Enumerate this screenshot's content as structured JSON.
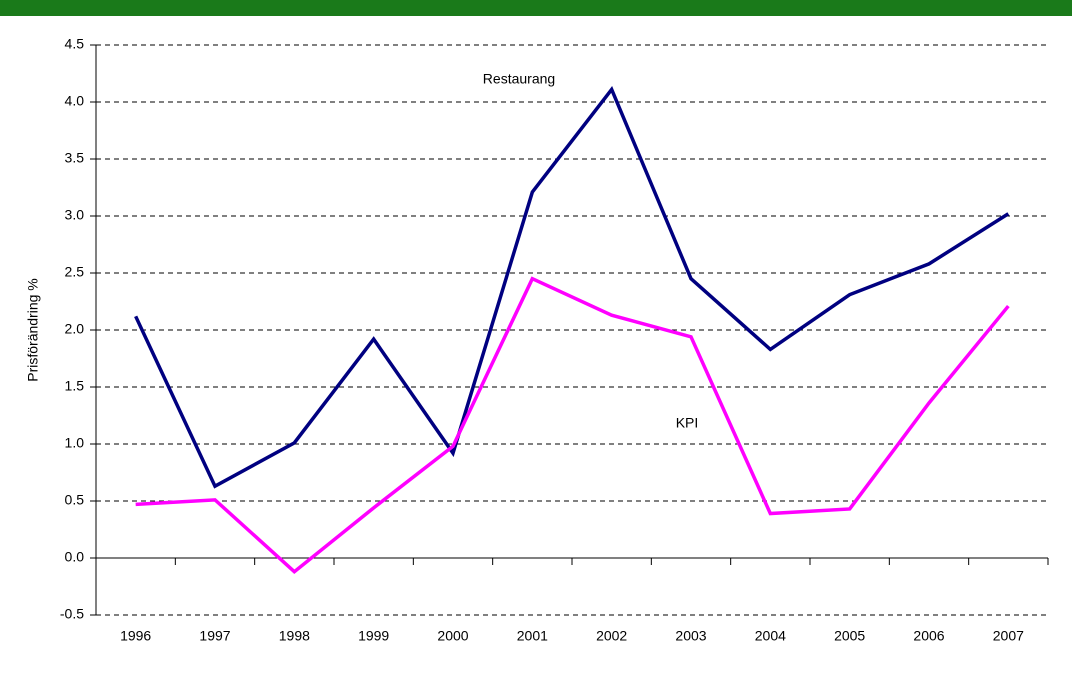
{
  "chart_data": {
    "type": "line",
    "y_label": "Prisförändring %",
    "categories": [
      "1996",
      "1997",
      "1998",
      "1999",
      "2000",
      "2001",
      "2002",
      "2003",
      "2004",
      "2005",
      "2006",
      "2007"
    ],
    "series": [
      {
        "name": "Restaurang",
        "color": "#000080",
        "values": [
          2.12,
          0.63,
          1.01,
          1.92,
          0.92,
          3.21,
          4.11,
          2.45,
          1.83,
          2.31,
          2.58,
          3.02
        ]
      },
      {
        "name": "KPI",
        "color": "#ff00ff",
        "values": [
          0.47,
          0.51,
          -0.12,
          0.44,
          0.98,
          2.45,
          2.13,
          1.94,
          0.39,
          0.43,
          1.36,
          2.21
        ]
      }
    ],
    "ylim": [
      -0.5,
      4.5
    ],
    "yticks": [
      -0.5,
      {
        "value": 0,
        "label": "0.0"
      },
      0.5,
      {
        "value": 1,
        "label": "1.0"
      },
      1.5,
      {
        "value": 2,
        "label": "2.0"
      },
      2.5,
      {
        "value": 3,
        "label": "3.0"
      },
      3.5,
      {
        "value": 4,
        "label": "4.0"
      },
      4.5
    ],
    "grid": true
  }
}
